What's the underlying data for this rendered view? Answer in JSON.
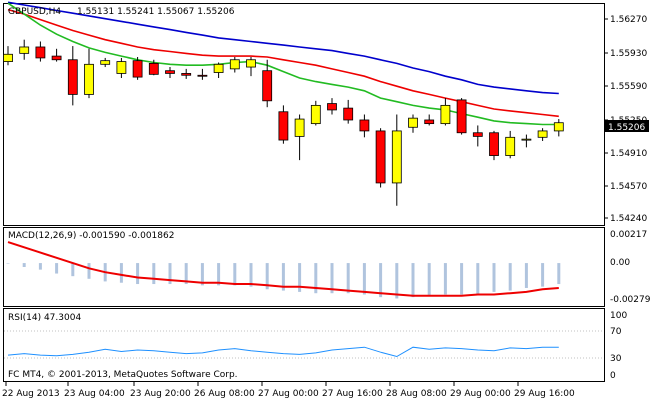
{
  "window": {
    "symbol_label": "GBPUSD,H4",
    "ohlc_text": "1.55131 1.55241 1.55067 1.55206",
    "current_price_label": "1.55206",
    "copyright": "FC MT4, © 2001-2013, MetaQuotes Software Corp."
  },
  "colors": {
    "bull": "#ffff00",
    "bear": "#ff0000",
    "ma_fast": "#22bb22",
    "ma_mid": "#ee0000",
    "ma_slow": "#0000cc",
    "macd_hist": "#b0c4de",
    "macd_signal": "#ee0000",
    "rsi": "#1e90ff",
    "grid_level": "#c0c0c0"
  },
  "chart_data": [
    {
      "type": "candlestick",
      "title": "GBPUSD,H4",
      "ylim": [
        1.541,
        1.565
      ],
      "y_ticks": [
        "1.56270",
        "1.55930",
        "1.55590",
        "1.55250",
        "1.54910",
        "1.54570",
        "1.54240"
      ],
      "x_ticks": [
        "22 Aug 2013",
        "23 Aug 04:00",
        "23 Aug 20:00",
        "26 Aug 08:00",
        "27 Aug 00:00",
        "27 Aug 16:00",
        "28 Aug 08:00",
        "29 Aug 00:00",
        "29 Aug 16:00"
      ],
      "candles": [
        {
          "o": 1.5588,
          "h": 1.5605,
          "l": 1.5584,
          "c": 1.5596
        },
        {
          "o": 1.5597,
          "h": 1.5612,
          "l": 1.559,
          "c": 1.5604
        },
        {
          "o": 1.5604,
          "h": 1.561,
          "l": 1.5588,
          "c": 1.5592
        },
        {
          "o": 1.5594,
          "h": 1.5602,
          "l": 1.5588,
          "c": 1.559
        },
        {
          "o": 1.559,
          "h": 1.5605,
          "l": 1.554,
          "c": 1.5552
        },
        {
          "o": 1.5552,
          "h": 1.5602,
          "l": 1.5548,
          "c": 1.5585
        },
        {
          "o": 1.5585,
          "h": 1.5592,
          "l": 1.5582,
          "c": 1.5589
        },
        {
          "o": 1.5575,
          "h": 1.5592,
          "l": 1.557,
          "c": 1.5588
        },
        {
          "o": 1.5589,
          "h": 1.5593,
          "l": 1.5568,
          "c": 1.5571
        },
        {
          "o": 1.5586,
          "h": 1.559,
          "l": 1.5573,
          "c": 1.5574
        },
        {
          "o": 1.5578,
          "h": 1.5582,
          "l": 1.557,
          "c": 1.5575
        },
        {
          "o": 1.5575,
          "h": 1.558,
          "l": 1.5569,
          "c": 1.5573
        },
        {
          "o": 1.5573,
          "h": 1.558,
          "l": 1.5568,
          "c": 1.5572
        },
        {
          "o": 1.5576,
          "h": 1.5587,
          "l": 1.557,
          "c": 1.5585
        },
        {
          "o": 1.558,
          "h": 1.5593,
          "l": 1.5576,
          "c": 1.559
        },
        {
          "o": 1.5582,
          "h": 1.5593,
          "l": 1.5572,
          "c": 1.559
        },
        {
          "o": 1.5578,
          "h": 1.559,
          "l": 1.5538,
          "c": 1.5545
        },
        {
          "o": 1.5533,
          "h": 1.554,
          "l": 1.5498,
          "c": 1.5502
        },
        {
          "o": 1.5506,
          "h": 1.553,
          "l": 1.548,
          "c": 1.5525
        },
        {
          "o": 1.552,
          "h": 1.5545,
          "l": 1.5518,
          "c": 1.554
        },
        {
          "o": 1.5542,
          "h": 1.5548,
          "l": 1.553,
          "c": 1.5535
        },
        {
          "o": 1.5537,
          "h": 1.5546,
          "l": 1.552,
          "c": 1.5524
        },
        {
          "o": 1.5524,
          "h": 1.553,
          "l": 1.5505,
          "c": 1.5512
        },
        {
          "o": 1.5512,
          "h": 1.5515,
          "l": 1.545,
          "c": 1.5455
        },
        {
          "o": 1.5455,
          "h": 1.553,
          "l": 1.543,
          "c": 1.5512
        },
        {
          "o": 1.5516,
          "h": 1.553,
          "l": 1.551,
          "c": 1.5526
        },
        {
          "o": 1.5524,
          "h": 1.553,
          "l": 1.5518,
          "c": 1.552
        },
        {
          "o": 1.552,
          "h": 1.5548,
          "l": 1.5518,
          "c": 1.554
        },
        {
          "o": 1.5546,
          "h": 1.5548,
          "l": 1.5508,
          "c": 1.551
        },
        {
          "o": 1.551,
          "h": 1.5518,
          "l": 1.5495,
          "c": 1.5506
        },
        {
          "o": 1.551,
          "h": 1.5512,
          "l": 1.548,
          "c": 1.5485
        },
        {
          "o": 1.5485,
          "h": 1.5512,
          "l": 1.5482,
          "c": 1.5505
        },
        {
          "o": 1.5502,
          "h": 1.5508,
          "l": 1.5494,
          "c": 1.5503
        },
        {
          "o": 1.5505,
          "h": 1.5515,
          "l": 1.5501,
          "c": 1.5512
        },
        {
          "o": 1.5512,
          "h": 1.5525,
          "l": 1.5506,
          "c": 1.5521
        }
      ],
      "ma_fast": [
        1.5652,
        1.564,
        1.5628,
        1.5618,
        1.561,
        1.5603,
        1.5598,
        1.5594,
        1.559,
        1.5587,
        1.5585,
        1.5584,
        1.5584,
        1.5585,
        1.5587,
        1.5588,
        1.5584,
        1.5577,
        1.557,
        1.5566,
        1.5563,
        1.556,
        1.5556,
        1.5548,
        1.5544,
        1.554,
        1.5537,
        1.5535,
        1.5531,
        1.5527,
        1.5523,
        1.5521,
        1.552,
        1.5519,
        1.5519
      ],
      "ma_mid": [
        1.5645,
        1.564,
        1.5634,
        1.5628,
        1.5622,
        1.5617,
        1.5612,
        1.5608,
        1.5604,
        1.5601,
        1.5599,
        1.5597,
        1.5595,
        1.5594,
        1.5594,
        1.5594,
        1.5593,
        1.559,
        1.5587,
        1.5584,
        1.558,
        1.5576,
        1.5572,
        1.5566,
        1.5561,
        1.5556,
        1.5552,
        1.5548,
        1.5544,
        1.554,
        1.5536,
        1.5534,
        1.5532,
        1.553,
        1.5528
      ],
      "ma_slow": [
        1.5653,
        1.565,
        1.5647,
        1.5644,
        1.5641,
        1.5638,
        1.5635,
        1.5632,
        1.5629,
        1.5626,
        1.5623,
        1.562,
        1.5617,
        1.5614,
        1.5612,
        1.561,
        1.5608,
        1.5606,
        1.5604,
        1.5602,
        1.56,
        1.5597,
        1.5594,
        1.559,
        1.5586,
        1.5581,
        1.5577,
        1.5572,
        1.5568,
        1.5563,
        1.556,
        1.5558,
        1.5556,
        1.5554,
        1.5553
      ]
    },
    {
      "type": "bar",
      "title": "MACD(12,26,9) -0.001590 -0.001862",
      "ylim": [
        -0.0032,
        0.0026
      ],
      "y_ticks": [
        "0.00217",
        "0.00",
        "-0.002792"
      ],
      "histogram": [
        0.0,
        -0.0003,
        -0.0005,
        -0.0008,
        -0.001,
        -0.0012,
        -0.0014,
        -0.0015,
        -0.0016,
        -0.0016,
        -0.0016,
        -0.0016,
        -0.0017,
        -0.0017,
        -0.0017,
        -0.0018,
        -0.002,
        -0.0021,
        -0.0022,
        -0.0023,
        -0.0023,
        -0.0023,
        -0.0024,
        -0.0026,
        -0.0027,
        -0.0026,
        -0.0025,
        -0.0024,
        -0.0024,
        -0.0024,
        -0.0022,
        -0.0021,
        -0.0019,
        -0.0018,
        -0.0016
      ],
      "signal": [
        0.0016,
        0.0012,
        0.0008,
        0.0004,
        0.0,
        -0.0004,
        -0.0007,
        -0.0009,
        -0.0011,
        -0.0012,
        -0.0013,
        -0.0014,
        -0.0015,
        -0.0015,
        -0.0016,
        -0.0016,
        -0.0017,
        -0.0018,
        -0.0018,
        -0.0019,
        -0.002,
        -0.0021,
        -0.0022,
        -0.0023,
        -0.0024,
        -0.0025,
        -0.0025,
        -0.0025,
        -0.0025,
        -0.0024,
        -0.0024,
        -0.0023,
        -0.0022,
        -0.002,
        -0.0019
      ]
    },
    {
      "type": "line",
      "title": "RSI(14) 47.3004",
      "ylim": [
        0,
        100
      ],
      "y_ticks": [
        "100",
        "70",
        "30",
        "0"
      ],
      "levels": [
        70,
        30
      ],
      "values": [
        36,
        38,
        36,
        35,
        37,
        40,
        44,
        41,
        43,
        42,
        40,
        38,
        39,
        43,
        45,
        42,
        40,
        38,
        37,
        39,
        43,
        45,
        47,
        40,
        34,
        47,
        44,
        46,
        45,
        43,
        42,
        46,
        45,
        47,
        47
      ]
    }
  ]
}
